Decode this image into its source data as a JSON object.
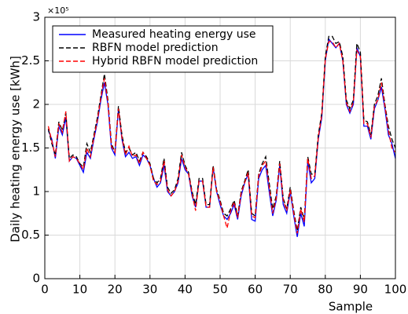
{
  "chart_data": {
    "type": "line",
    "xlabel": "Sample",
    "ylabel": "Daily heating energy use [kWh]",
    "y_multiplier": "×10⁵",
    "x": [
      1,
      2,
      3,
      4,
      5,
      6,
      7,
      8,
      9,
      10,
      11,
      12,
      13,
      14,
      15,
      16,
      17,
      18,
      19,
      20,
      21,
      22,
      23,
      24,
      25,
      26,
      27,
      28,
      29,
      30,
      31,
      32,
      33,
      34,
      35,
      36,
      37,
      38,
      39,
      40,
      41,
      42,
      43,
      44,
      45,
      46,
      47,
      48,
      49,
      50,
      51,
      52,
      53,
      54,
      55,
      56,
      57,
      58,
      59,
      60,
      61,
      62,
      63,
      64,
      65,
      66,
      67,
      68,
      69,
      70,
      71,
      72,
      73,
      74,
      75,
      76,
      77,
      78,
      79,
      80,
      81,
      82,
      83,
      84,
      85,
      86,
      87,
      88,
      89,
      90,
      91,
      92,
      93,
      94,
      95,
      96,
      97,
      98,
      99,
      100
    ],
    "series": [
      {
        "name": "Measured heating energy use",
        "color": "#0000ff",
        "style": "solid",
        "values": [
          1.7,
          1.6,
          1.38,
          1.75,
          1.65,
          1.85,
          1.35,
          1.4,
          1.38,
          1.3,
          1.22,
          1.45,
          1.38,
          1.6,
          1.8,
          2.05,
          2.25,
          2.0,
          1.5,
          1.42,
          1.95,
          1.6,
          1.4,
          1.45,
          1.38,
          1.4,
          1.3,
          1.42,
          1.38,
          1.3,
          1.15,
          1.05,
          1.1,
          1.3,
          1.0,
          0.95,
          1.0,
          1.1,
          1.38,
          1.25,
          1.2,
          0.95,
          0.82,
          1.12,
          1.12,
          0.82,
          0.82,
          1.28,
          1.0,
          0.85,
          0.72,
          0.68,
          0.75,
          0.85,
          0.68,
          0.95,
          1.1,
          1.2,
          0.68,
          0.66,
          1.15,
          1.25,
          1.3,
          1.0,
          0.72,
          0.9,
          1.3,
          0.85,
          0.75,
          1.0,
          0.72,
          0.48,
          0.75,
          0.6,
          1.35,
          1.1,
          1.15,
          1.6,
          1.85,
          2.5,
          2.75,
          2.7,
          2.65,
          2.7,
          2.5,
          2.0,
          1.9,
          2.0,
          2.65,
          2.55,
          1.75,
          1.75,
          1.6,
          1.95,
          2.05,
          2.2,
          1.95,
          1.65,
          1.55,
          1.38
        ]
      },
      {
        "name": "RBFN model prediction",
        "color": "#000000",
        "style": "dashed",
        "values": [
          1.72,
          1.55,
          1.42,
          1.8,
          1.7,
          1.9,
          1.38,
          1.42,
          1.4,
          1.32,
          1.28,
          1.55,
          1.45,
          1.65,
          1.85,
          2.1,
          2.35,
          2.05,
          1.55,
          1.45,
          1.98,
          1.65,
          1.45,
          1.5,
          1.42,
          1.45,
          1.35,
          1.45,
          1.4,
          1.32,
          1.15,
          1.1,
          1.15,
          1.38,
          1.05,
          0.98,
          1.02,
          1.15,
          1.45,
          1.3,
          1.22,
          1.0,
          0.85,
          1.15,
          1.15,
          0.85,
          0.85,
          1.3,
          1.02,
          0.9,
          0.75,
          0.72,
          0.8,
          0.9,
          0.72,
          1.0,
          1.12,
          1.25,
          0.75,
          0.72,
          1.2,
          1.32,
          1.4,
          1.1,
          0.8,
          0.95,
          1.35,
          0.92,
          0.8,
          1.05,
          0.78,
          0.55,
          0.82,
          0.68,
          1.4,
          1.2,
          1.2,
          1.65,
          1.9,
          2.55,
          2.78,
          2.78,
          2.7,
          2.72,
          2.55,
          2.05,
          1.95,
          2.05,
          2.7,
          2.6,
          1.82,
          1.8,
          1.65,
          2.0,
          2.1,
          2.3,
          2.0,
          1.75,
          1.6,
          1.5
        ]
      },
      {
        "name": "Hybrid RBFN model prediction",
        "color": "#ff0000",
        "style": "dashed",
        "values": [
          1.75,
          1.58,
          1.4,
          1.78,
          1.68,
          1.92,
          1.35,
          1.4,
          1.38,
          1.32,
          1.25,
          1.5,
          1.4,
          1.62,
          1.82,
          2.08,
          2.3,
          2.02,
          1.52,
          1.45,
          1.95,
          1.62,
          1.42,
          1.52,
          1.4,
          1.42,
          1.32,
          1.45,
          1.38,
          1.3,
          1.12,
          1.08,
          1.12,
          1.35,
          1.02,
          0.95,
          1.0,
          1.12,
          1.42,
          1.28,
          1.2,
          0.98,
          0.78,
          1.12,
          1.12,
          0.82,
          0.82,
          1.28,
          1.0,
          0.88,
          0.72,
          0.58,
          0.78,
          0.88,
          0.7,
          0.98,
          1.1,
          1.22,
          0.72,
          0.7,
          1.18,
          1.3,
          1.35,
          1.05,
          0.75,
          0.92,
          1.32,
          0.9,
          0.78,
          1.02,
          0.75,
          0.52,
          0.8,
          0.65,
          1.38,
          1.15,
          1.18,
          1.62,
          1.88,
          2.52,
          2.72,
          2.72,
          2.65,
          2.7,
          2.5,
          2.02,
          1.92,
          2.02,
          2.62,
          2.55,
          1.78,
          1.78,
          1.62,
          1.98,
          2.05,
          2.25,
          1.98,
          1.7,
          1.5,
          1.45
        ]
      }
    ],
    "xlim": [
      0,
      100
    ],
    "xticks": [
      0,
      10,
      20,
      30,
      40,
      50,
      60,
      70,
      80,
      90,
      100
    ],
    "ylim": [
      0,
      3
    ],
    "yticks": [
      0,
      0.5,
      1,
      1.5,
      2,
      2.5,
      3
    ],
    "grid": true,
    "legend": "upper left"
  }
}
